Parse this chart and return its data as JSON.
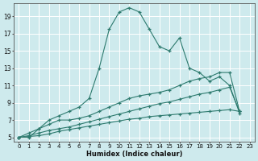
{
  "xlabel": "Humidex (Indice chaleur)",
  "bg_color": "#ceeaed",
  "line_color": "#2d7a6e",
  "grid_color": "#ffffff",
  "xlim": [
    -0.5,
    23.5
  ],
  "ylim": [
    4.5,
    20.5
  ],
  "xticks": [
    0,
    1,
    2,
    3,
    4,
    5,
    6,
    7,
    8,
    9,
    10,
    11,
    12,
    13,
    14,
    15,
    16,
    17,
    18,
    19,
    20,
    21,
    22,
    23
  ],
  "yticks": [
    5,
    7,
    9,
    11,
    13,
    15,
    17,
    19
  ],
  "series": [
    [
      5,
      5,
      6,
      7,
      7.5,
      8,
      8.5,
      9.5,
      13,
      17.5,
      19.5,
      20,
      19.5,
      17.5,
      15.5,
      15,
      16.5,
      13,
      12.5,
      11.5,
      12,
      11,
      7.8,
      null
    ],
    [
      5,
      5.5,
      6,
      6.5,
      7,
      7,
      7.2,
      7.5,
      8,
      8.5,
      9,
      9.5,
      9.8,
      10,
      10.2,
      10.5,
      11,
      11.5,
      11.8,
      12,
      12.5,
      12.5,
      8.0,
      null
    ],
    [
      5,
      5.2,
      5.5,
      5.8,
      6.0,
      6.2,
      6.5,
      6.8,
      7.1,
      7.4,
      7.7,
      8.0,
      8.3,
      8.6,
      8.9,
      9.1,
      9.4,
      9.7,
      10.0,
      10.2,
      10.5,
      10.8,
      8.0,
      null
    ],
    [
      5,
      5.1,
      5.2,
      5.4,
      5.7,
      5.9,
      6.1,
      6.3,
      6.5,
      6.7,
      6.9,
      7.1,
      7.2,
      7.4,
      7.5,
      7.6,
      7.7,
      7.8,
      7.9,
      8.0,
      8.1,
      8.2,
      8.0,
      null
    ]
  ]
}
